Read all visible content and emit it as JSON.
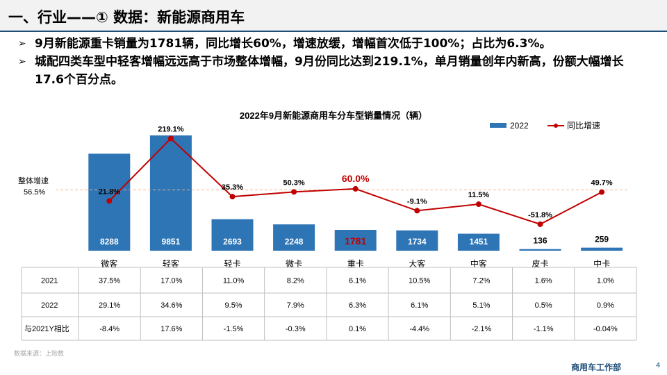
{
  "page": {
    "title": "一、行业——① 数据：新能源商用车",
    "bullets": [
      "9月新能源重卡销量为1781辆，同比增长60%，增速放缓，增幅首次低于100%；占比为6.3%。",
      "城配四类车型中轻客增幅远远高于市场整体增幅，9月份同比达到219.1%，单月销量创年内新高，份额大幅增长17.6个百分点。"
    ],
    "bullet_mark": "➢",
    "source": "数据来源：上险数",
    "footer": "商用车工作部",
    "page_number": "4"
  },
  "colors": {
    "bar": "#2e75b6",
    "line": "#c00000",
    "avg": "#f4b183",
    "highlight": "#c00000"
  },
  "chart_data": {
    "type": "bar",
    "title": "2022年9月新能源商用车分车型销量情况（辆）",
    "categories": [
      "微客",
      "轻客",
      "轻卡",
      "微卡",
      "重卡",
      "大客",
      "中客",
      "皮卡",
      "中卡"
    ],
    "series": [
      {
        "name": "2022",
        "type": "bar",
        "values": [
          8288,
          9851,
          2693,
          2248,
          1781,
          1734,
          1451,
          136,
          259
        ]
      },
      {
        "name": "同比增速",
        "type": "line",
        "unit": "%",
        "values": [
          21.8,
          219.1,
          35.3,
          50.3,
          60.0,
          -9.1,
          11.5,
          -51.8,
          49.7
        ],
        "labels": [
          "21.8%",
          "219.1%",
          "35.3%",
          "50.3%",
          "60.0%",
          "-9.1%",
          "11.5%",
          "-51.8%",
          "49.7%"
        ]
      }
    ],
    "highlight_category": "重卡",
    "reference_line": {
      "label": "整体增速",
      "value_label": "56.5%",
      "value": 56.5
    },
    "legend": "top-right",
    "table": {
      "rows": [
        {
          "label": "2021",
          "values": [
            "37.5%",
            "17.0%",
            "11.0%",
            "8.2%",
            "6.1%",
            "10.5%",
            "7.2%",
            "1.6%",
            "1.0%"
          ]
        },
        {
          "label": "2022",
          "values": [
            "29.1%",
            "34.6%",
            "9.5%",
            "7.9%",
            "6.3%",
            "6.1%",
            "5.1%",
            "0.5%",
            "0.9%"
          ]
        },
        {
          "label": "与2021Y相比",
          "values": [
            "-8.4%",
            "17.6%",
            "-1.5%",
            "-0.3%",
            "0.1%",
            "-4.4%",
            "-2.1%",
            "-1.1%",
            "-0.04%"
          ]
        }
      ]
    }
  }
}
